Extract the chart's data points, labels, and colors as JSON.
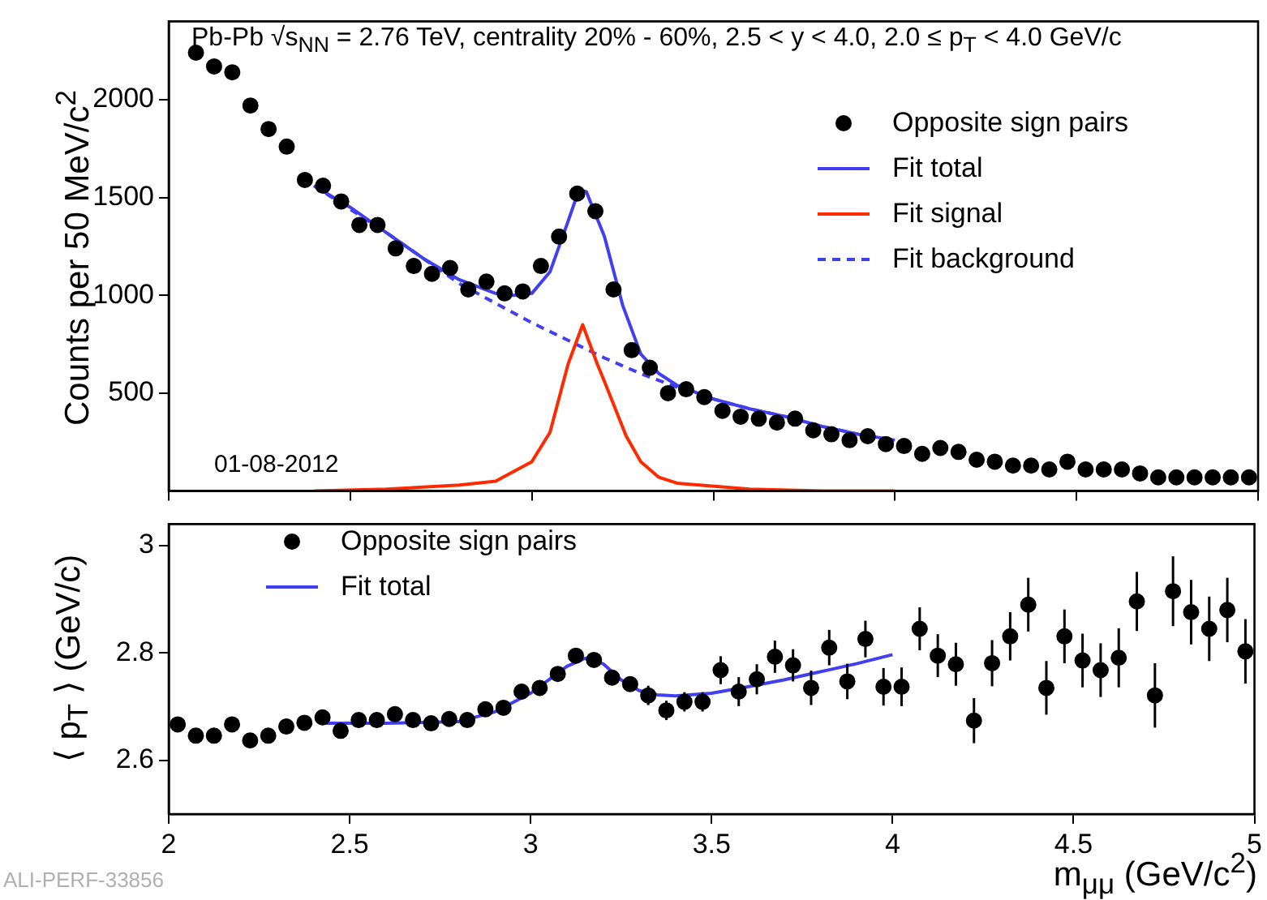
{
  "chart_data": [
    {
      "type": "scatter",
      "title": "Pb-Pb √s$_{NN}$ = 2.76 TeV, centrality 20% - 60%, 2.5 < y < 4.0, 2.0  ≤  p$_{T}$ < 4.0 GeV/c",
      "ylabel": "Counts per 50 MeV/c$^{2}$",
      "annotations": [
        "01-08-2012"
      ],
      "series": [
        {
          "name": "Opposite sign pairs",
          "type": "scatter",
          "marker": "circle",
          "color": "#000000",
          "x": [
            2.075,
            2.125,
            2.175,
            2.225,
            2.275,
            2.325,
            2.375,
            2.425,
            2.475,
            2.525,
            2.575,
            2.625,
            2.675,
            2.725,
            2.775,
            2.825,
            2.875,
            2.925,
            2.975,
            3.025,
            3.075,
            3.125,
            3.175,
            3.225,
            3.275,
            3.325,
            3.375,
            3.425,
            3.475,
            3.525,
            3.575,
            3.625,
            3.675,
            3.725,
            3.775,
            3.825,
            3.875,
            3.925,
            3.975,
            4.025,
            4.075,
            4.125,
            4.175,
            4.225,
            4.275,
            4.325,
            4.375,
            4.425,
            4.475,
            4.525,
            4.575,
            4.625,
            4.675,
            4.725,
            4.775,
            4.825,
            4.875,
            4.925,
            4.975
          ],
          "values": [
            2240,
            2170,
            2140,
            1970,
            1850,
            1760,
            1590,
            1560,
            1480,
            1360,
            1360,
            1240,
            1150,
            1110,
            1140,
            1030,
            1070,
            1010,
            1020,
            1150,
            1300,
            1520,
            1430,
            1030,
            720,
            630,
            500,
            520,
            480,
            410,
            380,
            370,
            350,
            370,
            310,
            290,
            260,
            280,
            240,
            230,
            190,
            220,
            200,
            160,
            150,
            130,
            130,
            110,
            150,
            110,
            110,
            110,
            90,
            70,
            70,
            70,
            70,
            70,
            70
          ]
        },
        {
          "name": "Fit total",
          "type": "line",
          "color": "#4040f0",
          "x": [
            2.4,
            2.5,
            2.6,
            2.7,
            2.8,
            2.9,
            2.95,
            3.0,
            3.05,
            3.1,
            3.13,
            3.15,
            3.2,
            3.25,
            3.3,
            3.35,
            3.4,
            3.5,
            3.6,
            3.7,
            3.8,
            3.9,
            4.0
          ],
          "values": [
            1560,
            1450,
            1320,
            1190,
            1080,
            1010,
            1000,
            1010,
            1120,
            1380,
            1540,
            1530,
            1300,
            950,
            700,
            600,
            540,
            470,
            420,
            380,
            330,
            290,
            260
          ]
        },
        {
          "name": "Fit signal",
          "type": "line",
          "color": "#ff2a00",
          "x": [
            2.4,
            2.6,
            2.8,
            2.9,
            3.0,
            3.05,
            3.1,
            3.14,
            3.18,
            3.2,
            3.23,
            3.26,
            3.3,
            3.35,
            3.4,
            3.6,
            3.8,
            4.0
          ],
          "values": [
            0,
            10,
            30,
            50,
            150,
            300,
            650,
            850,
            650,
            560,
            420,
            280,
            150,
            70,
            40,
            10,
            0,
            0
          ]
        },
        {
          "name": "Fit background",
          "type": "line",
          "line_style": "dashed",
          "color": "#4040f0",
          "x": [
            2.4,
            2.6,
            2.8,
            2.9,
            3.0,
            3.1,
            3.2,
            3.3,
            3.4,
            3.5,
            3.6,
            3.7,
            3.8,
            3.9,
            4.0
          ],
          "values": [
            1560,
            1320,
            1060,
            960,
            860,
            770,
            680,
            600,
            530,
            470,
            420,
            380,
            330,
            290,
            260
          ]
        }
      ],
      "xlim": [
        2,
        5
      ],
      "xticks": [
        2,
        2.5,
        3,
        3.5,
        4,
        4.5,
        5
      ],
      "ylim": [
        0,
        2400
      ],
      "yticks": [
        500,
        1000,
        1500,
        2000
      ],
      "tick_labels": "y",
      "legend": "top right"
    },
    {
      "type": "scatter",
      "xlabel": "m$_{μμ}$ (GeV/c$^{2}$)",
      "ylabel": "⟨ p$_{T}$ ⟩ (GeV/c)",
      "annotations": [
        "ALI-PERF-33856"
      ],
      "x": [
        2.025,
        2.075,
        2.125,
        2.175,
        2.225,
        2.275,
        2.325,
        2.375,
        2.425,
        2.475,
        2.525,
        2.575,
        2.625,
        2.675,
        2.725,
        2.775,
        2.825,
        2.875,
        2.925,
        2.975,
        3.025,
        3.075,
        3.125,
        3.175,
        3.225,
        3.275,
        3.325,
        3.375,
        3.425,
        3.475,
        3.525,
        3.575,
        3.625,
        3.675,
        3.725,
        3.775,
        3.825,
        3.875,
        3.925,
        3.975,
        4.025,
        4.075,
        4.125,
        4.175,
        4.225,
        4.275,
        4.325,
        4.375,
        4.425,
        4.475,
        4.525,
        4.575,
        4.625,
        4.675,
        4.725,
        4.775,
        4.825,
        4.875,
        4.925,
        4.975
      ],
      "series": [
        {
          "name": "Opposite sign pairs",
          "type": "scatter",
          "marker": "circle",
          "color": "#000000",
          "values": [
            2.667,
            2.646,
            2.646,
            2.667,
            2.637,
            2.646,
            2.663,
            2.67,
            2.68,
            2.655,
            2.675,
            2.675,
            2.686,
            2.675,
            2.669,
            2.677,
            2.675,
            2.695,
            2.698,
            2.728,
            2.735,
            2.761,
            2.795,
            2.787,
            2.754,
            2.742,
            2.721,
            2.693,
            2.709,
            2.709,
            2.768,
            2.728,
            2.751,
            2.793,
            2.777,
            2.735,
            2.81,
            2.747,
            2.826,
            2.737,
            2.737,
            2.845,
            2.795,
            2.779,
            2.674,
            2.781,
            2.831,
            2.89,
            2.735,
            2.831,
            2.786,
            2.768,
            2.791,
            2.896,
            2.721,
            2.915,
            2.876,
            2.845,
            2.88,
            2.803
          ],
          "errors": [
            0.008,
            0.008,
            0.008,
            0.008,
            0.008,
            0.008,
            0.008,
            0.008,
            0.008,
            0.008,
            0.008,
            0.008,
            0.008,
            0.008,
            0.008,
            0.008,
            0.008,
            0.008,
            0.008,
            0.008,
            0.01,
            0.01,
            0.01,
            0.01,
            0.01,
            0.01,
            0.018,
            0.018,
            0.018,
            0.018,
            0.026,
            0.027,
            0.028,
            0.03,
            0.03,
            0.032,
            0.033,
            0.033,
            0.034,
            0.035,
            0.036,
            0.04,
            0.04,
            0.04,
            0.042,
            0.043,
            0.045,
            0.05,
            0.05,
            0.05,
            0.05,
            0.05,
            0.055,
            0.055,
            0.06,
            0.065,
            0.06,
            0.06,
            0.06,
            0.06
          ]
        },
        {
          "name": "Fit total",
          "type": "line",
          "color": "#4040f0",
          "x": [
            2.425,
            2.6,
            2.8,
            2.9,
            3.0,
            3.1,
            3.15,
            3.2,
            3.25,
            3.3,
            3.35,
            3.4,
            3.5,
            3.6,
            3.7,
            3.8,
            3.9,
            4.0
          ],
          "values": [
            2.669,
            2.669,
            2.672,
            2.69,
            2.725,
            2.775,
            2.79,
            2.78,
            2.75,
            2.73,
            2.722,
            2.72,
            2.725,
            2.737,
            2.75,
            2.765,
            2.78,
            2.797
          ]
        }
      ],
      "xlim": [
        2,
        5
      ],
      "xticks": [
        2,
        2.5,
        3,
        3.5,
        4,
        4.5,
        5
      ],
      "ylim": [
        2.5,
        3.04
      ],
      "yticks": [
        2.6,
        2.8,
        3
      ],
      "legend": "top left"
    }
  ]
}
